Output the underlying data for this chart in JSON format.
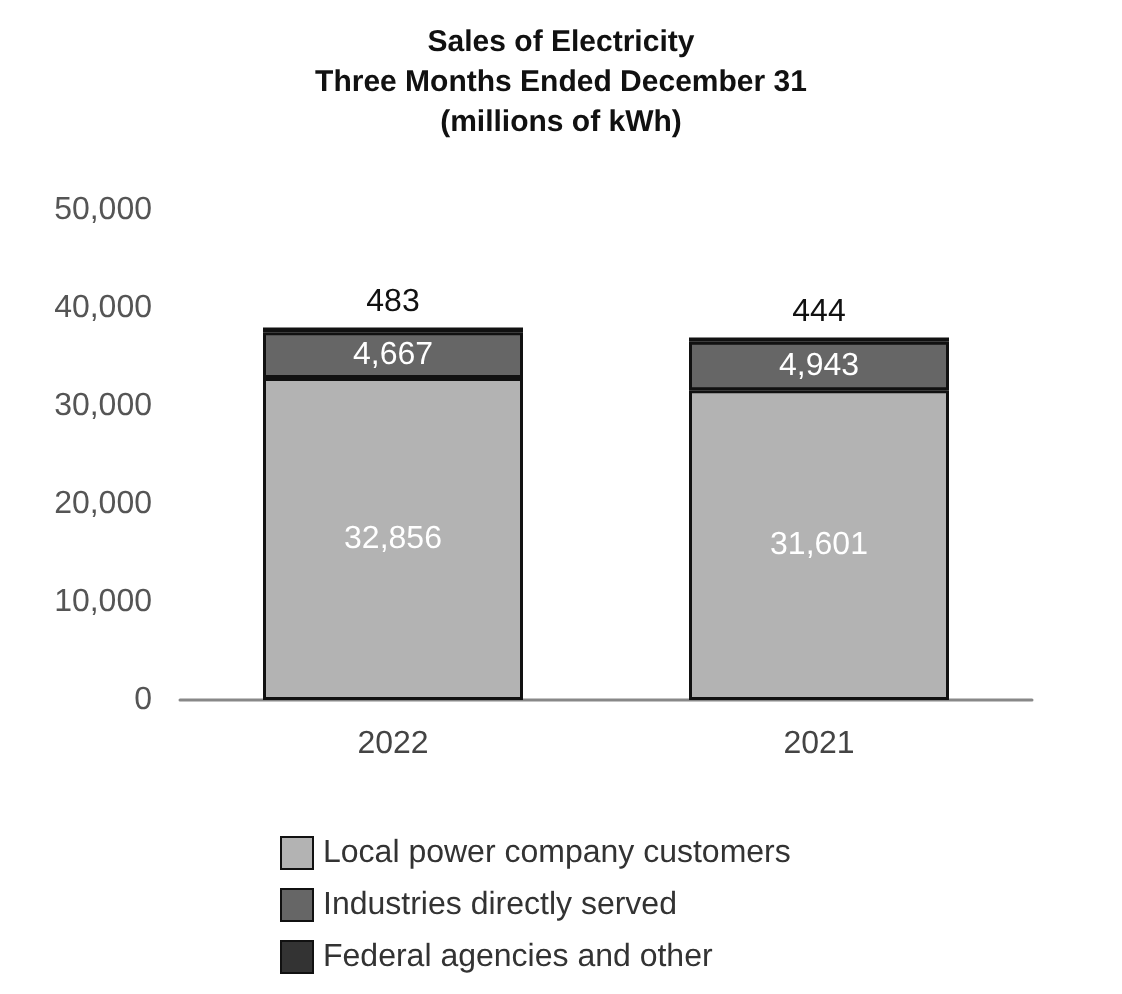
{
  "chart_data": {
    "type": "bar",
    "title": "Sales of Electricity\nThree Months Ended December 31\n(millions of kWh)",
    "categories": [
      "2022",
      "2021"
    ],
    "stacked": true,
    "series": [
      {
        "name": "Local power company customers",
        "color": "#b3b3b3",
        "values": [
          32856,
          31601
        ],
        "value_labels": [
          "32,856",
          "31,601"
        ]
      },
      {
        "name": "Industries directly served",
        "color": "#666666",
        "values": [
          4667,
          4943
        ],
        "value_labels": [
          "4,667",
          "4,943"
        ]
      },
      {
        "name": "Federal agencies and other",
        "color": "#333333",
        "values": [
          483,
          444
        ],
        "value_labels": [
          "483",
          "444"
        ]
      }
    ],
    "ylim": [
      0,
      50000
    ],
    "yticks": [
      0,
      {
        "value": 10000,
        "label": "10,000"
      },
      {
        "value": 20000,
        "label": "20,000"
      },
      {
        "value": 30000,
        "label": "30,000"
      },
      {
        "value": 40000,
        "label": "40,000"
      },
      {
        "value": 50000,
        "label": "50,000"
      }
    ],
    "grid": false,
    "legend": "bottom"
  }
}
